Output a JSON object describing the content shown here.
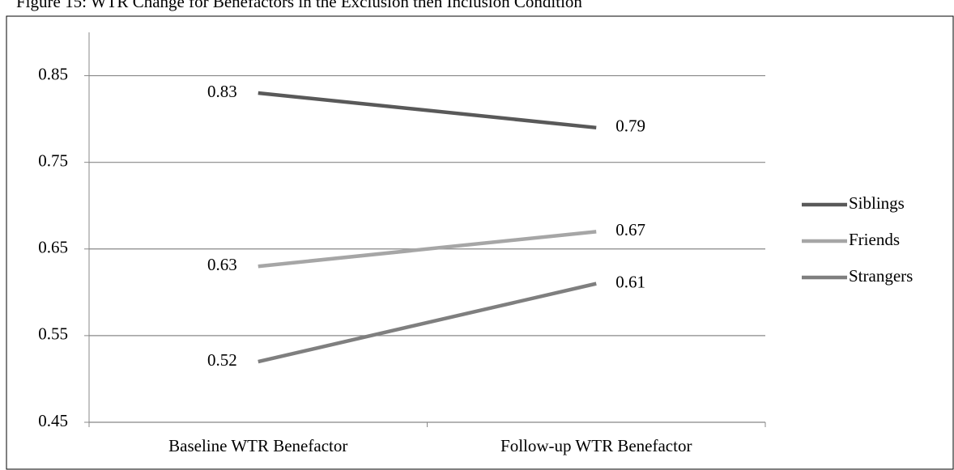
{
  "chart_data": {
    "type": "line",
    "title": "Figure 15: WTR Change for Benefactors in the Exclusion then Inclusion Condition",
    "categories": [
      "Baseline WTR Benefactor",
      "Follow-up WTR Benefactor"
    ],
    "series": [
      {
        "name": "Siblings",
        "color": "#595959",
        "values": [
          0.83,
          0.79
        ]
      },
      {
        "name": "Friends",
        "color": "#a6a6a6",
        "values": [
          0.63,
          0.67
        ]
      },
      {
        "name": "Strangers",
        "color": "#7f7f7f",
        "values": [
          0.52,
          0.61
        ]
      }
    ],
    "ylim": [
      0.45,
      0.9
    ],
    "yticks": [
      0.45,
      0.55,
      0.65,
      0.75,
      0.85
    ],
    "grid": true,
    "legend": "right"
  }
}
